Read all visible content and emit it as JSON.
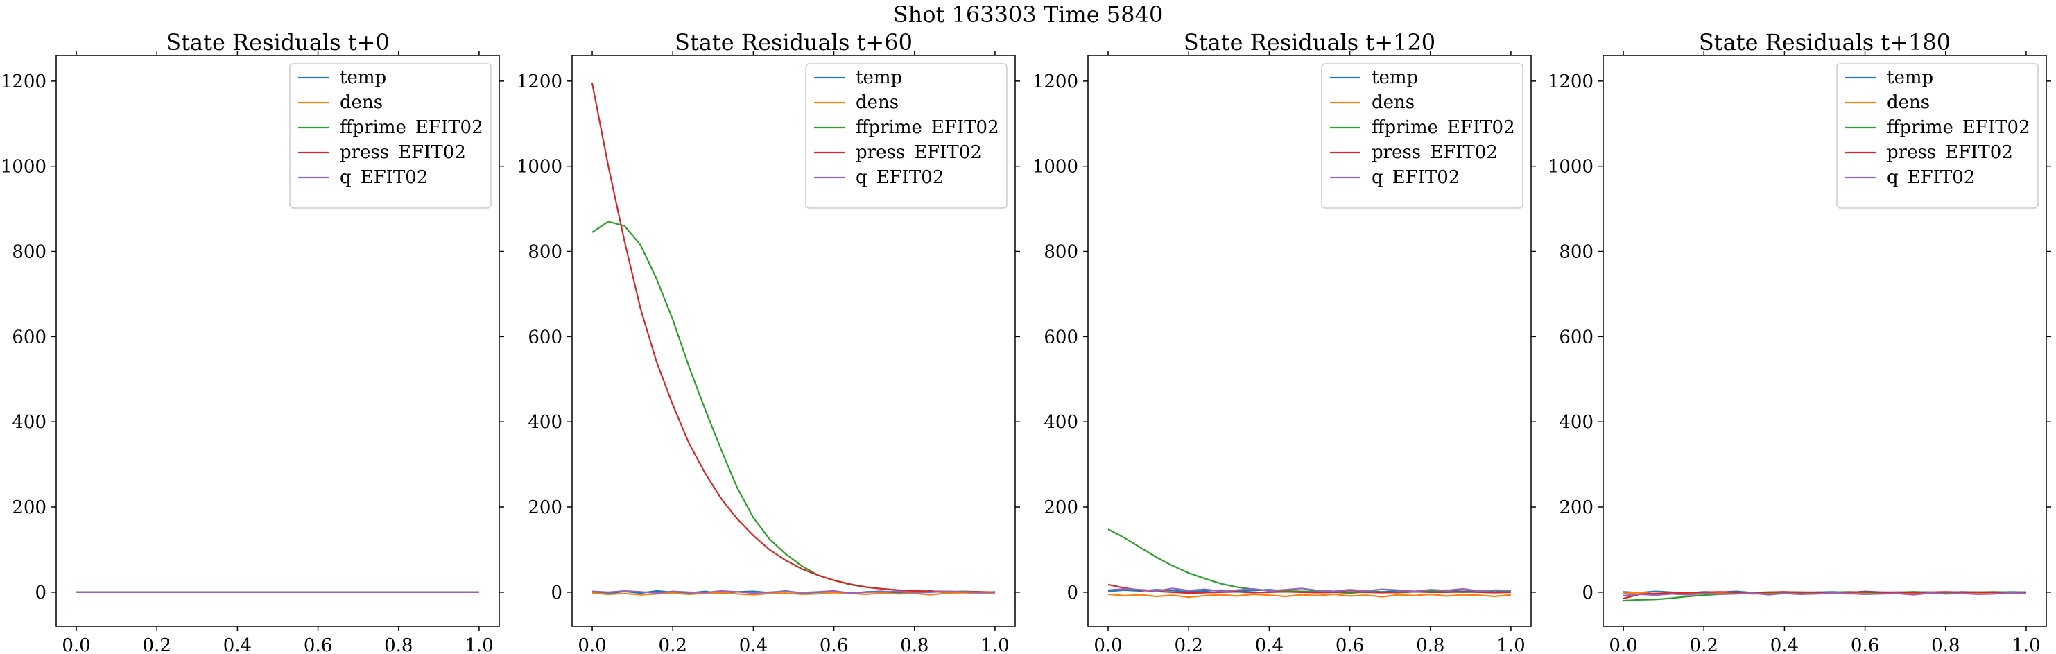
{
  "figure": {
    "suptitle": "Shot 163303   Time 5840"
  },
  "chart_data": [
    {
      "type": "line",
      "title": "State Residuals t+0",
      "xlabel": "",
      "ylabel": "",
      "xlim": [
        -0.05,
        1.05
      ],
      "ylim": [
        -80,
        1260
      ],
      "xticks": [
        0.0,
        0.2,
        0.4,
        0.6,
        0.8,
        1.0
      ],
      "xtick_labels": [
        "0.0",
        "0.2",
        "0.4",
        "0.6",
        "0.8",
        "1.0"
      ],
      "yticks": [
        0,
        200,
        400,
        600,
        800,
        1000,
        1200
      ],
      "ytick_labels": [
        "0",
        "200",
        "400",
        "600",
        "800",
        "1000",
        "1200"
      ],
      "legend_position": "top-right",
      "x": [
        0.0,
        0.1,
        0.2,
        0.3,
        0.4,
        0.5,
        0.6,
        0.7,
        0.8,
        0.9,
        1.0
      ],
      "series": [
        {
          "name": "temp",
          "color": "#1f77b4",
          "values": [
            0,
            0,
            0,
            0,
            0,
            0,
            0,
            0,
            0,
            0,
            0
          ]
        },
        {
          "name": "dens",
          "color": "#ff7f0e",
          "values": [
            0,
            0,
            0,
            0,
            0,
            0,
            0,
            0,
            0,
            0,
            0
          ]
        },
        {
          "name": "ffprime_EFIT02",
          "color": "#2ca02c",
          "values": [
            0,
            0,
            0,
            0,
            0,
            0,
            0,
            0,
            0,
            0,
            0
          ]
        },
        {
          "name": "press_EFIT02",
          "color": "#d62728",
          "values": [
            0,
            0,
            0,
            0,
            0,
            0,
            0,
            0,
            0,
            0,
            0
          ]
        },
        {
          "name": "q_EFIT02",
          "color": "#9467bd",
          "values": [
            0,
            0,
            0,
            0,
            0,
            0,
            0,
            0,
            0,
            0,
            0
          ]
        }
      ]
    },
    {
      "type": "line",
      "title": "State Residuals t+60",
      "xlabel": "",
      "ylabel": "",
      "xlim": [
        -0.05,
        1.05
      ],
      "ylim": [
        -80,
        1260
      ],
      "xticks": [
        0.0,
        0.2,
        0.4,
        0.6,
        0.8,
        1.0
      ],
      "xtick_labels": [
        "0.0",
        "0.2",
        "0.4",
        "0.6",
        "0.8",
        "1.0"
      ],
      "yticks": [
        0,
        200,
        400,
        600,
        800,
        1000,
        1200
      ],
      "ytick_labels": [
        "0",
        "200",
        "400",
        "600",
        "800",
        "1000",
        "1200"
      ],
      "legend_position": "top-right",
      "x": [
        0.0,
        0.04,
        0.08,
        0.12,
        0.16,
        0.2,
        0.24,
        0.28,
        0.32,
        0.36,
        0.4,
        0.44,
        0.48,
        0.52,
        0.56,
        0.6,
        0.64,
        0.68,
        0.72,
        0.76,
        0.8,
        0.84,
        0.88,
        0.92,
        0.96,
        1.0
      ],
      "series": [
        {
          "name": "temp",
          "color": "#1f77b4",
          "values": [
            0,
            -3,
            2,
            -2,
            3,
            0,
            -2,
            2,
            -3,
            1,
            2,
            -1,
            3,
            -2,
            0,
            2,
            -3,
            1,
            2,
            -2,
            0,
            3,
            -1,
            2,
            -2,
            1
          ]
        },
        {
          "name": "dens",
          "color": "#ff7f0e",
          "values": [
            -2,
            -5,
            -3,
            -6,
            -4,
            -2,
            -5,
            -3,
            -1,
            -4,
            -6,
            -3,
            -2,
            -5,
            -4,
            -1,
            -3,
            -5,
            -2,
            -4,
            -3,
            -6,
            -2,
            -1,
            -3,
            -2
          ]
        },
        {
          "name": "ffprime_EFIT02",
          "color": "#2ca02c",
          "values": [
            845,
            870,
            860,
            815,
            735,
            640,
            530,
            430,
            335,
            245,
            175,
            125,
            90,
            62,
            40,
            28,
            18,
            12,
            8,
            5,
            3,
            2,
            1,
            2,
            1,
            0
          ]
        },
        {
          "name": "press_EFIT02",
          "color": "#d62728",
          "values": [
            1195,
            1000,
            825,
            665,
            540,
            440,
            350,
            280,
            220,
            172,
            133,
            100,
            75,
            55,
            40,
            28,
            19,
            12,
            8,
            5,
            3,
            2,
            2,
            1,
            1,
            0
          ]
        },
        {
          "name": "q_EFIT02",
          "color": "#9467bd",
          "values": [
            2,
            0,
            3,
            1,
            -2,
            2,
            0,
            -1,
            3,
            1,
            -2,
            0,
            2,
            -1,
            1,
            3,
            -2,
            0,
            1,
            2,
            -1,
            0,
            2,
            1,
            -1,
            0
          ]
        }
      ]
    },
    {
      "type": "line",
      "title": "State Residuals t+120",
      "xlabel": "",
      "ylabel": "",
      "xlim": [
        -0.05,
        1.05
      ],
      "ylim": [
        -80,
        1260
      ],
      "xticks": [
        0.0,
        0.2,
        0.4,
        0.6,
        0.8,
        1.0
      ],
      "xtick_labels": [
        "0.0",
        "0.2",
        "0.4",
        "0.6",
        "0.8",
        "1.0"
      ],
      "yticks": [
        0,
        200,
        400,
        600,
        800,
        1000,
        1200
      ],
      "ytick_labels": [
        "0",
        "200",
        "400",
        "600",
        "800",
        "1000",
        "1200"
      ],
      "legend_position": "top-right",
      "x": [
        0.0,
        0.04,
        0.08,
        0.12,
        0.16,
        0.2,
        0.24,
        0.28,
        0.32,
        0.36,
        0.4,
        0.44,
        0.48,
        0.52,
        0.56,
        0.6,
        0.64,
        0.68,
        0.72,
        0.76,
        0.8,
        0.84,
        0.88,
        0.92,
        0.96,
        1.0
      ],
      "series": [
        {
          "name": "temp",
          "color": "#1f77b4",
          "values": [
            2,
            5,
            3,
            6,
            4,
            1,
            3,
            5,
            2,
            4,
            6,
            3,
            1,
            4,
            2,
            5,
            3,
            1,
            4,
            2,
            3,
            5,
            2,
            4,
            1,
            3
          ]
        },
        {
          "name": "dens",
          "color": "#ff7f0e",
          "values": [
            -5,
            -8,
            -6,
            -10,
            -7,
            -12,
            -8,
            -6,
            -9,
            -5,
            -7,
            -10,
            -6,
            -8,
            -5,
            -9,
            -7,
            -11,
            -6,
            -8,
            -5,
            -9,
            -6,
            -7,
            -10,
            -6
          ]
        },
        {
          "name": "ffprime_EFIT02",
          "color": "#2ca02c",
          "values": [
            148,
            128,
            105,
            82,
            62,
            45,
            32,
            20,
            12,
            7,
            4,
            3,
            2,
            1,
            0,
            -2,
            1,
            0,
            -1,
            1,
            2,
            1,
            0,
            1,
            0,
            1
          ]
        },
        {
          "name": "press_EFIT02",
          "color": "#d62728",
          "values": [
            18,
            10,
            5,
            2,
            0,
            -2,
            -1,
            0,
            1,
            -1,
            0,
            1,
            0,
            -1,
            0,
            1,
            0,
            -1,
            0,
            1,
            0,
            0,
            1,
            0,
            -1,
            0
          ]
        },
        {
          "name": "q_EFIT02",
          "color": "#9467bd",
          "values": [
            5,
            8,
            6,
            3,
            9,
            4,
            7,
            2,
            5,
            8,
            3,
            6,
            9,
            4,
            2,
            6,
            3,
            7,
            5,
            2,
            6,
            4,
            8,
            3,
            5,
            4
          ]
        }
      ]
    },
    {
      "type": "line",
      "title": "State Residuals t+180",
      "xlabel": "",
      "ylabel": "",
      "xlim": [
        -0.05,
        1.05
      ],
      "ylim": [
        -80,
        1260
      ],
      "xticks": [
        0.0,
        0.2,
        0.4,
        0.6,
        0.8,
        1.0
      ],
      "xtick_labels": [
        "0.0",
        "0.2",
        "0.4",
        "0.6",
        "0.8",
        "1.0"
      ],
      "yticks": [
        0,
        200,
        400,
        600,
        800,
        1000,
        1200
      ],
      "ytick_labels": [
        "0",
        "200",
        "400",
        "600",
        "800",
        "1000",
        "1200"
      ],
      "legend_position": "top-right",
      "x": [
        0.0,
        0.04,
        0.08,
        0.12,
        0.16,
        0.2,
        0.24,
        0.28,
        0.32,
        0.36,
        0.4,
        0.44,
        0.48,
        0.52,
        0.56,
        0.6,
        0.64,
        0.68,
        0.72,
        0.76,
        0.8,
        0.84,
        0.88,
        0.92,
        0.96,
        1.0
      ],
      "series": [
        {
          "name": "temp",
          "color": "#1f77b4",
          "values": [
            1,
            -1,
            2,
            0,
            -2,
            1,
            0,
            2,
            -1,
            0,
            1,
            -2,
            0,
            1,
            -1,
            2,
            0,
            -1,
            1,
            0,
            -2,
            1,
            0,
            -1,
            1,
            0
          ]
        },
        {
          "name": "dens",
          "color": "#ff7f0e",
          "values": [
            -3,
            -1,
            -4,
            -2,
            -5,
            -3,
            -1,
            -2,
            -4,
            -3,
            -1,
            -5,
            -2,
            -3,
            -4,
            -1,
            -3,
            -2,
            -5,
            -1,
            -3,
            -2,
            -4,
            -1,
            -3,
            -2
          ]
        },
        {
          "name": "ffprime_EFIT02",
          "color": "#2ca02c",
          "values": [
            -20,
            -18,
            -17,
            -14,
            -10,
            -7,
            -5,
            -3,
            -2,
            -1,
            0,
            0,
            -1,
            0,
            1,
            0,
            -1,
            0,
            1,
            0,
            -1,
            0,
            0,
            1,
            0,
            0
          ]
        },
        {
          "name": "press_EFIT02",
          "color": "#d62728",
          "values": [
            -15,
            -5,
            -3,
            -2,
            -1,
            0,
            1,
            0,
            -1,
            0,
            1,
            0,
            0,
            -1,
            0,
            1,
            0,
            0,
            -1,
            0,
            1,
            0,
            0,
            0,
            -1,
            0
          ]
        },
        {
          "name": "q_EFIT02",
          "color": "#9467bd",
          "values": [
            -8,
            -5,
            -7,
            -4,
            -6,
            -3,
            -5,
            -4,
            -2,
            -6,
            -3,
            -5,
            -4,
            -2,
            -3,
            -5,
            -4,
            -3,
            -6,
            -2,
            -4,
            -3,
            -5,
            -4,
            -2,
            -3
          ]
        }
      ]
    }
  ]
}
